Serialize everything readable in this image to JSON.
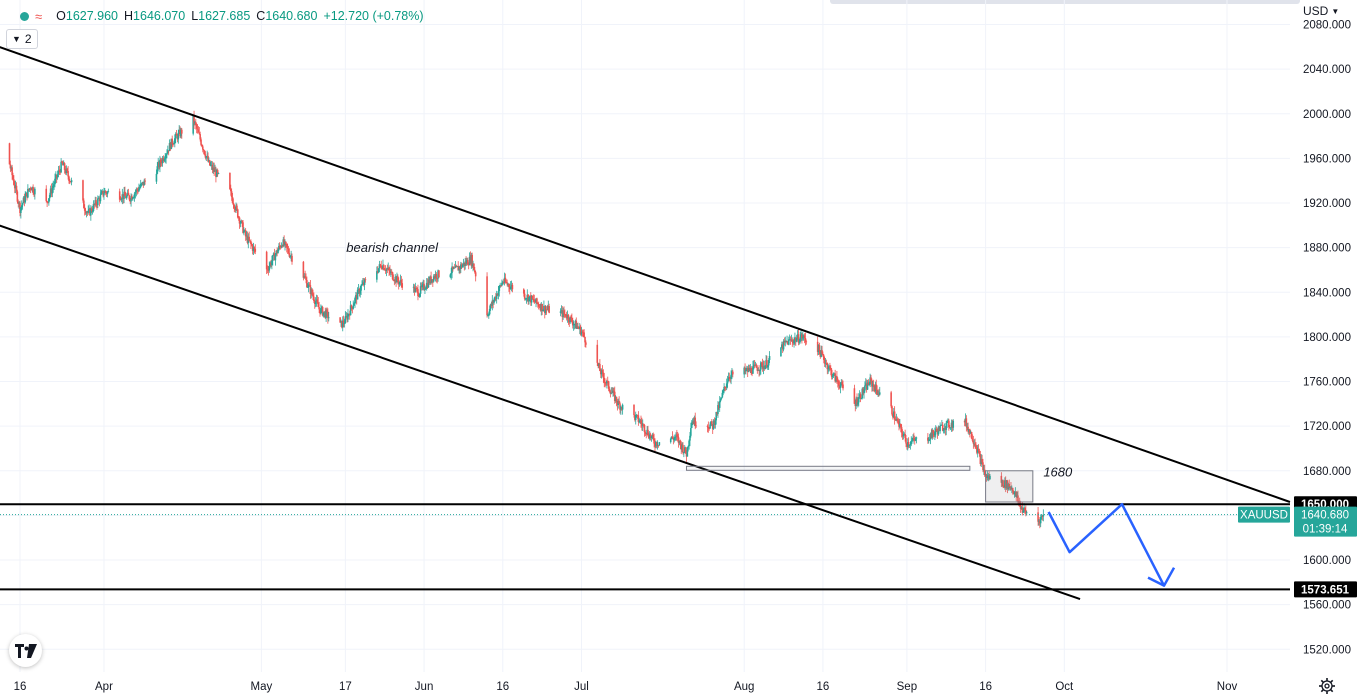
{
  "legend": {
    "open_label": "O",
    "open": "1627.960",
    "high_label": "H",
    "high": "1646.070",
    "low_label": "L",
    "low": "1627.685",
    "close_label": "C",
    "close": "1640.680",
    "change": "+12.720 (+0.78%)"
  },
  "indicator_count": "2",
  "currency": "USD",
  "colors": {
    "up": "#26a69a",
    "down": "#ef5350",
    "projection": "#2962ff",
    "line": "#000000",
    "ticker_bg": "#26a69a"
  },
  "chart_data": {
    "type": "candlestick",
    "symbol": "XAUUSD",
    "y_axis": {
      "ticks": [
        "2080.000",
        "2040.000",
        "2000.000",
        "1960.000",
        "1920.000",
        "1880.000",
        "1840.000",
        "1800.000",
        "1760.000",
        "1720.000",
        "1680.000",
        "1640.000",
        "1600.000",
        "1560.000",
        "1520.000"
      ],
      "range": [
        1505,
        2093
      ]
    },
    "x_axis": {
      "ticks": [
        {
          "label": "16",
          "date": "2022-03-16"
        },
        {
          "label": "Apr",
          "date": "2022-04-01"
        },
        {
          "label": "May",
          "date": "2022-05-01"
        },
        {
          "label": "17",
          "date": "2022-05-17"
        },
        {
          "label": "Jun",
          "date": "2022-06-01"
        },
        {
          "label": "16",
          "date": "2022-06-16"
        },
        {
          "label": "Jul",
          "date": "2022-07-01"
        },
        {
          "label": "Aug",
          "date": "2022-08-01"
        },
        {
          "label": "16",
          "date": "2022-08-16"
        },
        {
          "label": "Sep",
          "date": "2022-09-01"
        },
        {
          "label": "16",
          "date": "2022-09-16"
        },
        {
          "label": "Oct",
          "date": "2022-10-01"
        },
        {
          "label": "Nov",
          "date": "2022-11-01"
        }
      ]
    },
    "price_path": [
      [
        "2022-03-09",
        1995
      ],
      [
        "2022-03-14",
        1955
      ],
      [
        "2022-03-16",
        1915
      ],
      [
        "2022-03-18",
        1935
      ],
      [
        "2022-03-21",
        1920
      ],
      [
        "2022-03-24",
        1955
      ],
      [
        "2022-03-29",
        1910
      ],
      [
        "2022-04-01",
        1930
      ],
      [
        "2022-04-06",
        1925
      ],
      [
        "2022-04-11",
        1950
      ],
      [
        "2022-04-14",
        1975
      ],
      [
        "2022-04-18",
        1995
      ],
      [
        "2022-04-21",
        1955
      ],
      [
        "2022-04-25",
        1930
      ],
      [
        "2022-04-28",
        1890
      ],
      [
        "2022-05-02",
        1860
      ],
      [
        "2022-05-05",
        1885
      ],
      [
        "2022-05-09",
        1855
      ],
      [
        "2022-05-12",
        1825
      ],
      [
        "2022-05-16",
        1810
      ],
      [
        "2022-05-17",
        1815
      ],
      [
        "2022-05-20",
        1845
      ],
      [
        "2022-05-24",
        1865
      ],
      [
        "2022-05-27",
        1850
      ],
      [
        "2022-05-31",
        1840
      ],
      [
        "2022-06-03",
        1855
      ],
      [
        "2022-06-07",
        1860
      ],
      [
        "2022-06-10",
        1870
      ],
      [
        "2022-06-13",
        1820
      ],
      [
        "2022-06-16",
        1850
      ],
      [
        "2022-06-21",
        1835
      ],
      [
        "2022-06-24",
        1825
      ],
      [
        "2022-06-28",
        1820
      ],
      [
        "2022-06-30",
        1810
      ],
      [
        "2022-07-01",
        1805
      ],
      [
        "2022-07-05",
        1765
      ],
      [
        "2022-07-08",
        1740
      ],
      [
        "2022-07-12",
        1725
      ],
      [
        "2022-07-15",
        1705
      ],
      [
        "2022-07-19",
        1710
      ],
      [
        "2022-07-21",
        1695
      ],
      [
        "2022-07-22",
        1725
      ],
      [
        "2022-07-26",
        1720
      ],
      [
        "2022-07-29",
        1765
      ],
      [
        "2022-08-02",
        1770
      ],
      [
        "2022-08-05",
        1775
      ],
      [
        "2022-08-09",
        1795
      ],
      [
        "2022-08-12",
        1800
      ],
      [
        "2022-08-15",
        1790
      ],
      [
        "2022-08-18",
        1765
      ],
      [
        "2022-08-22",
        1740
      ],
      [
        "2022-08-25",
        1760
      ],
      [
        "2022-08-29",
        1735
      ],
      [
        "2022-09-01",
        1705
      ],
      [
        "2022-09-05",
        1710
      ],
      [
        "2022-09-08",
        1720
      ],
      [
        "2022-09-12",
        1725
      ],
      [
        "2022-09-14",
        1705
      ],
      [
        "2022-09-16",
        1675
      ],
      [
        "2022-09-19",
        1670
      ],
      [
        "2022-09-21",
        1665
      ],
      [
        "2022-09-23",
        1645
      ],
      [
        "2022-09-26",
        1635
      ],
      [
        "2022-09-27",
        1640
      ]
    ],
    "last_price": {
      "value": 1640.68,
      "label": "1640.680",
      "ticker": "XAUUSD",
      "countdown": "01:39:14"
    },
    "horizontal_levels": [
      {
        "value": 1650,
        "label": "1650.000"
      },
      {
        "value": 1573.651,
        "label": "1573.651"
      }
    ],
    "channel": {
      "upper": [
        [
          "2022-03-09",
          2065
        ],
        [
          "2022-11-13",
          1652
        ]
      ],
      "lower": [
        [
          "2022-03-12",
          1900
        ],
        [
          "2022-10-04",
          1565
        ]
      ]
    },
    "support_zone": {
      "from": "2022-07-21",
      "to": "2022-09-13",
      "top": 1684,
      "bottom": 1681
    },
    "consolidation_box": {
      "from": "2022-09-16",
      "to": "2022-09-25",
      "top": 1680,
      "bottom": 1652
    },
    "annotations": [
      {
        "text": "bearish channel",
        "date": "2022-06-30",
        "price": 1876
      },
      {
        "text": "1680",
        "date": "2022-09-27",
        "price": 1675
      }
    ],
    "projection": [
      [
        "2022-09-28",
        1643
      ],
      [
        "2022-10-02",
        1607
      ],
      [
        "2022-10-12",
        1650
      ],
      [
        "2022-10-20",
        1577
      ]
    ],
    "grid": true
  }
}
